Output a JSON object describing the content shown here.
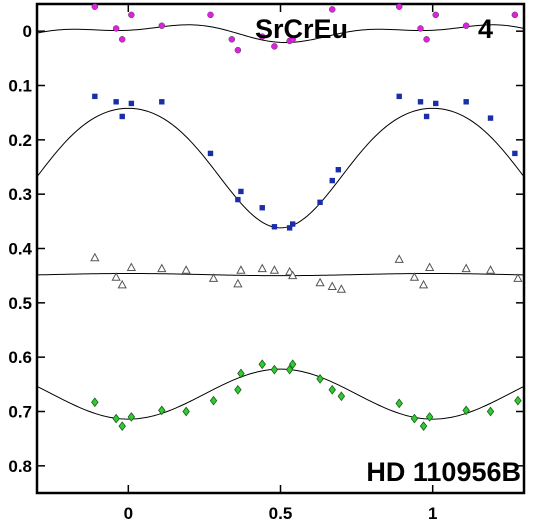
{
  "chart_data": {
    "type": "scatter",
    "title": "",
    "xlabel": "",
    "ylabel": "",
    "xlim": [
      -0.3,
      1.3
    ],
    "ylim": [
      0.85,
      -0.05
    ],
    "y_inverted": true,
    "grid": false,
    "legend": "none",
    "x_ticks": [
      0,
      0.5,
      1
    ],
    "x_tick_labels": [
      "0",
      "0.5",
      "1"
    ],
    "y_ticks": [
      0,
      0.1,
      0.2,
      0.3,
      0.4,
      0.5,
      0.6,
      0.7,
      0.8
    ],
    "y_tick_labels": [
      "0",
      "0.1",
      "0.2",
      "0.3",
      "0.4",
      "0.5",
      "0.6",
      "0.7",
      "0.8"
    ],
    "annotations": {
      "top_left": "SrCrEu",
      "top_right": "4",
      "bottom_right": "HD 110956B"
    },
    "series": [
      {
        "marker": "circle",
        "color": "#e020e0",
        "points": [
          [
            -0.11,
            -0.045
          ],
          [
            -0.04,
            -0.005
          ],
          [
            -0.02,
            0.015
          ],
          [
            0.01,
            -0.03
          ],
          [
            0.11,
            -0.01
          ],
          [
            0.27,
            -0.03
          ],
          [
            0.34,
            0.015
          ],
          [
            0.36,
            0.035
          ],
          [
            0.44,
            0.01
          ],
          [
            0.48,
            0.028
          ],
          [
            0.53,
            0.018
          ],
          [
            0.54,
            0.015
          ],
          [
            0.67,
            -0.04
          ],
          [
            0.89,
            -0.045
          ],
          [
            0.96,
            -0.005
          ],
          [
            0.98,
            0.015
          ],
          [
            1.01,
            -0.03
          ],
          [
            1.11,
            -0.01
          ],
          [
            1.27,
            -0.03
          ]
        ]
      },
      {
        "marker": "square",
        "color": "#1a2ea8",
        "points": [
          [
            -0.11,
            0.12
          ],
          [
            -0.04,
            0.13
          ],
          [
            -0.02,
            0.157
          ],
          [
            0.01,
            0.133
          ],
          [
            0.11,
            0.13
          ],
          [
            0.27,
            0.225
          ],
          [
            0.36,
            0.31
          ],
          [
            0.37,
            0.295
          ],
          [
            0.44,
            0.325
          ],
          [
            0.48,
            0.36
          ],
          [
            0.53,
            0.362
          ],
          [
            0.54,
            0.355
          ],
          [
            0.63,
            0.315
          ],
          [
            0.67,
            0.275
          ],
          [
            0.69,
            0.255
          ],
          [
            0.89,
            0.12
          ],
          [
            0.96,
            0.13
          ],
          [
            0.98,
            0.157
          ],
          [
            1.01,
            0.133
          ],
          [
            1.11,
            0.13
          ],
          [
            1.19,
            0.16
          ],
          [
            1.27,
            0.225
          ]
        ]
      },
      {
        "marker": "triangle",
        "color": "#555555",
        "points": [
          [
            -0.11,
            0.417
          ],
          [
            -0.04,
            0.453
          ],
          [
            -0.02,
            0.467
          ],
          [
            0.01,
            0.435
          ],
          [
            0.11,
            0.437
          ],
          [
            0.19,
            0.44
          ],
          [
            0.28,
            0.455
          ],
          [
            0.36,
            0.465
          ],
          [
            0.37,
            0.44
          ],
          [
            0.44,
            0.437
          ],
          [
            0.48,
            0.44
          ],
          [
            0.53,
            0.443
          ],
          [
            0.54,
            0.45
          ],
          [
            0.63,
            0.463
          ],
          [
            0.67,
            0.47
          ],
          [
            0.7,
            0.475
          ],
          [
            0.89,
            0.42
          ],
          [
            0.94,
            0.453
          ],
          [
            0.97,
            0.467
          ],
          [
            0.99,
            0.435
          ],
          [
            1.11,
            0.437
          ],
          [
            1.19,
            0.44
          ],
          [
            1.28,
            0.455
          ]
        ]
      },
      {
        "marker": "diamond",
        "color": "#2ecc2e",
        "points": [
          [
            -0.11,
            0.683
          ],
          [
            -0.04,
            0.713
          ],
          [
            -0.02,
            0.727
          ],
          [
            0.01,
            0.71
          ],
          [
            0.11,
            0.698
          ],
          [
            0.19,
            0.7
          ],
          [
            0.28,
            0.68
          ],
          [
            0.36,
            0.66
          ],
          [
            0.37,
            0.63
          ],
          [
            0.44,
            0.613
          ],
          [
            0.48,
            0.623
          ],
          [
            0.53,
            0.623
          ],
          [
            0.54,
            0.613
          ],
          [
            0.63,
            0.64
          ],
          [
            0.67,
            0.66
          ],
          [
            0.7,
            0.672
          ],
          [
            0.89,
            0.685
          ],
          [
            0.94,
            0.713
          ],
          [
            0.97,
            0.727
          ],
          [
            0.99,
            0.71
          ],
          [
            1.11,
            0.698
          ],
          [
            1.19,
            0.7
          ],
          [
            1.28,
            0.68
          ]
        ]
      }
    ],
    "fit_curves": [
      {
        "color": "#000000",
        "mean": 0.002,
        "a1": -0.012,
        "p1": 0.06,
        "a2": 0.0075,
        "p2": 0.0,
        "note": ""
      },
      {
        "color": "#000000",
        "mean": 0.242,
        "a1": -0.11,
        "p1": 0.0,
        "a2": 0.01,
        "p2": 0.0,
        "note": ""
      },
      {
        "color": "#000000",
        "mean": 0.448,
        "a1": -0.002,
        "p1": 0.0,
        "a2": 0.0,
        "p2": 0.0,
        "note": ""
      },
      {
        "color": "#000000",
        "mean": 0.668,
        "a1": 0.046,
        "p1": 0.0,
        "a2": 0.0,
        "p2": 0.0,
        "note": ""
      }
    ]
  }
}
